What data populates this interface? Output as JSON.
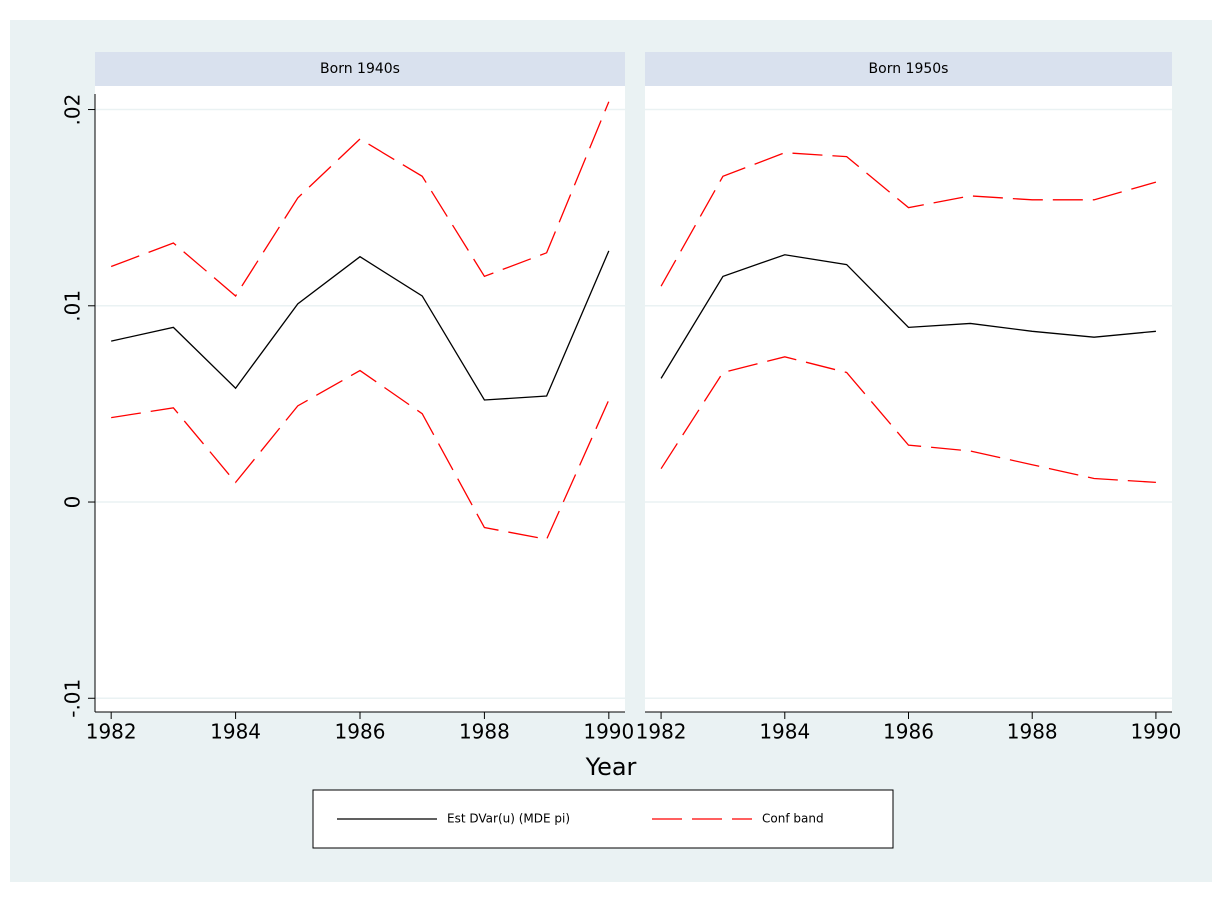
{
  "chart_data": {
    "type": "line",
    "xlabel": "Year",
    "xlim": [
      1981.74,
      1990.26
    ],
    "xticks": [
      1982,
      1984,
      1986,
      1988,
      1990
    ],
    "ylim": [
      -0.0107,
      0.0212
    ],
    "yticks": [
      {
        "value": -0.01,
        "label": "-.01"
      },
      0,
      {
        "value": 0.01,
        "label": ".01"
      },
      {
        "value": 0.02,
        "label": ".02"
      }
    ],
    "grid": true,
    "panels": [
      {
        "title": "Born 1940s",
        "x": [
          1982,
          1983,
          1984,
          1985,
          1986,
          1987,
          1988,
          1989,
          1990
        ],
        "series": [
          {
            "name": "Est DVar(u) (MDE pi)",
            "color": "#000000",
            "values": [
              0.0082,
              0.0089,
              0.0058,
              0.0101,
              0.0125,
              0.0105,
              0.0052,
              0.0054,
              0.0128
            ]
          },
          {
            "name": "Conf band",
            "color": "#ff0000",
            "dashed": true,
            "upper": [
              0.012,
              0.0132,
              0.0105,
              0.0155,
              0.0185,
              0.0166,
              0.0115,
              0.0127,
              0.0204
            ],
            "lower": [
              0.0043,
              0.0048,
              0.001,
              0.0049,
              0.0067,
              0.0045,
              -0.0013,
              -0.0019,
              0.0052
            ]
          }
        ]
      },
      {
        "title": "Born 1950s",
        "x": [
          1982,
          1983,
          1984,
          1985,
          1986,
          1987,
          1988,
          1989,
          1990
        ],
        "series": [
          {
            "name": "Est DVar(u) (MDE pi)",
            "color": "#000000",
            "values": [
              0.0063,
              0.0115,
              0.0126,
              0.0121,
              0.0089,
              0.0091,
              0.0087,
              0.0084,
              0.0087
            ]
          },
          {
            "name": "Conf band",
            "color": "#ff0000",
            "dashed": true,
            "upper": [
              0.011,
              0.0166,
              0.0178,
              0.0176,
              0.015,
              0.0156,
              0.0154,
              0.0154,
              0.0163
            ],
            "lower": [
              0.0017,
              0.0066,
              0.0074,
              0.0066,
              0.0029,
              0.0026,
              0.0019,
              0.0012,
              0.001
            ]
          }
        ]
      }
    ]
  }
}
